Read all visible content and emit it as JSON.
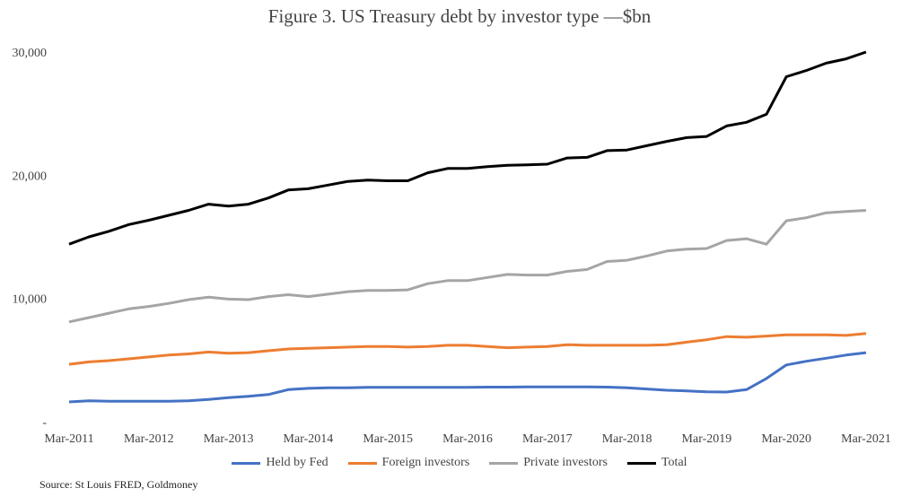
{
  "chart_data": {
    "type": "line",
    "title": "Figure 3. US Treasury debt by investor type —$bn",
    "xlabel": "",
    "ylabel": "",
    "ylim": [
      0,
      30000
    ],
    "y_ticks": [
      0,
      10000,
      20000,
      30000
    ],
    "y_tick_labels": [
      "-",
      "10,000",
      "20,000",
      "30,000"
    ],
    "x_tick_labels": [
      "Mar-2011",
      "Mar-2012",
      "Mar-2013",
      "Mar-2014",
      "Mar-2015",
      "Mar-2016",
      "Mar-2017",
      "Mar-2018",
      "Mar-2019",
      "Mar-2020",
      "Mar-2021"
    ],
    "x_frequency": "quarterly",
    "grid": false,
    "legend_position": "bottom",
    "series": [
      {
        "name": "Held by Fed",
        "color": "#4472C4",
        "values": [
          1600,
          1700,
          1650,
          1650,
          1650,
          1650,
          1700,
          1800,
          1950,
          2050,
          2200,
          2600,
          2700,
          2750,
          2750,
          2780,
          2780,
          2780,
          2780,
          2780,
          2780,
          2800,
          2800,
          2820,
          2820,
          2820,
          2820,
          2800,
          2750,
          2650,
          2550,
          2500,
          2420,
          2400,
          2600,
          3500,
          4600,
          4900,
          5150,
          5400,
          5600
        ]
      },
      {
        "name": "Foreign investors",
        "color": "#ED7D31",
        "values": [
          4650,
          4850,
          4950,
          5100,
          5250,
          5400,
          5500,
          5650,
          5550,
          5600,
          5750,
          5900,
          5950,
          6000,
          6050,
          6100,
          6100,
          6050,
          6100,
          6200,
          6200,
          6100,
          6000,
          6050,
          6100,
          6250,
          6200,
          6200,
          6200,
          6200,
          6250,
          6450,
          6650,
          6900,
          6850,
          6950,
          7050,
          7050,
          7050,
          7000,
          7150
        ]
      },
      {
        "name": "Private investors",
        "color": "#A5A5A5",
        "values": [
          8100,
          8450,
          8800,
          9150,
          9350,
          9600,
          9900,
          10100,
          9950,
          9900,
          10150,
          10300,
          10150,
          10350,
          10550,
          10650,
          10650,
          10700,
          11200,
          11450,
          11450,
          11700,
          11950,
          11900,
          11900,
          12200,
          12350,
          13000,
          13100,
          13450,
          13850,
          14000,
          14050,
          14700,
          14850,
          14400,
          16300,
          16550,
          16950,
          17050,
          17150
        ]
      },
      {
        "name": "Total",
        "color": "#000000",
        "values": [
          14400,
          15000,
          15450,
          16000,
          16350,
          16750,
          17150,
          17650,
          17500,
          17650,
          18150,
          18800,
          18900,
          19200,
          19500,
          19600,
          19550,
          19550,
          20200,
          20550,
          20550,
          20700,
          20800,
          20850,
          20900,
          21400,
          21450,
          22000,
          22050,
          22400,
          22750,
          23050,
          23150,
          24000,
          24300,
          24950,
          28000,
          28500,
          29100,
          29450,
          30000
        ]
      }
    ]
  },
  "source": "Source: St Louis FRED, Goldmoney"
}
